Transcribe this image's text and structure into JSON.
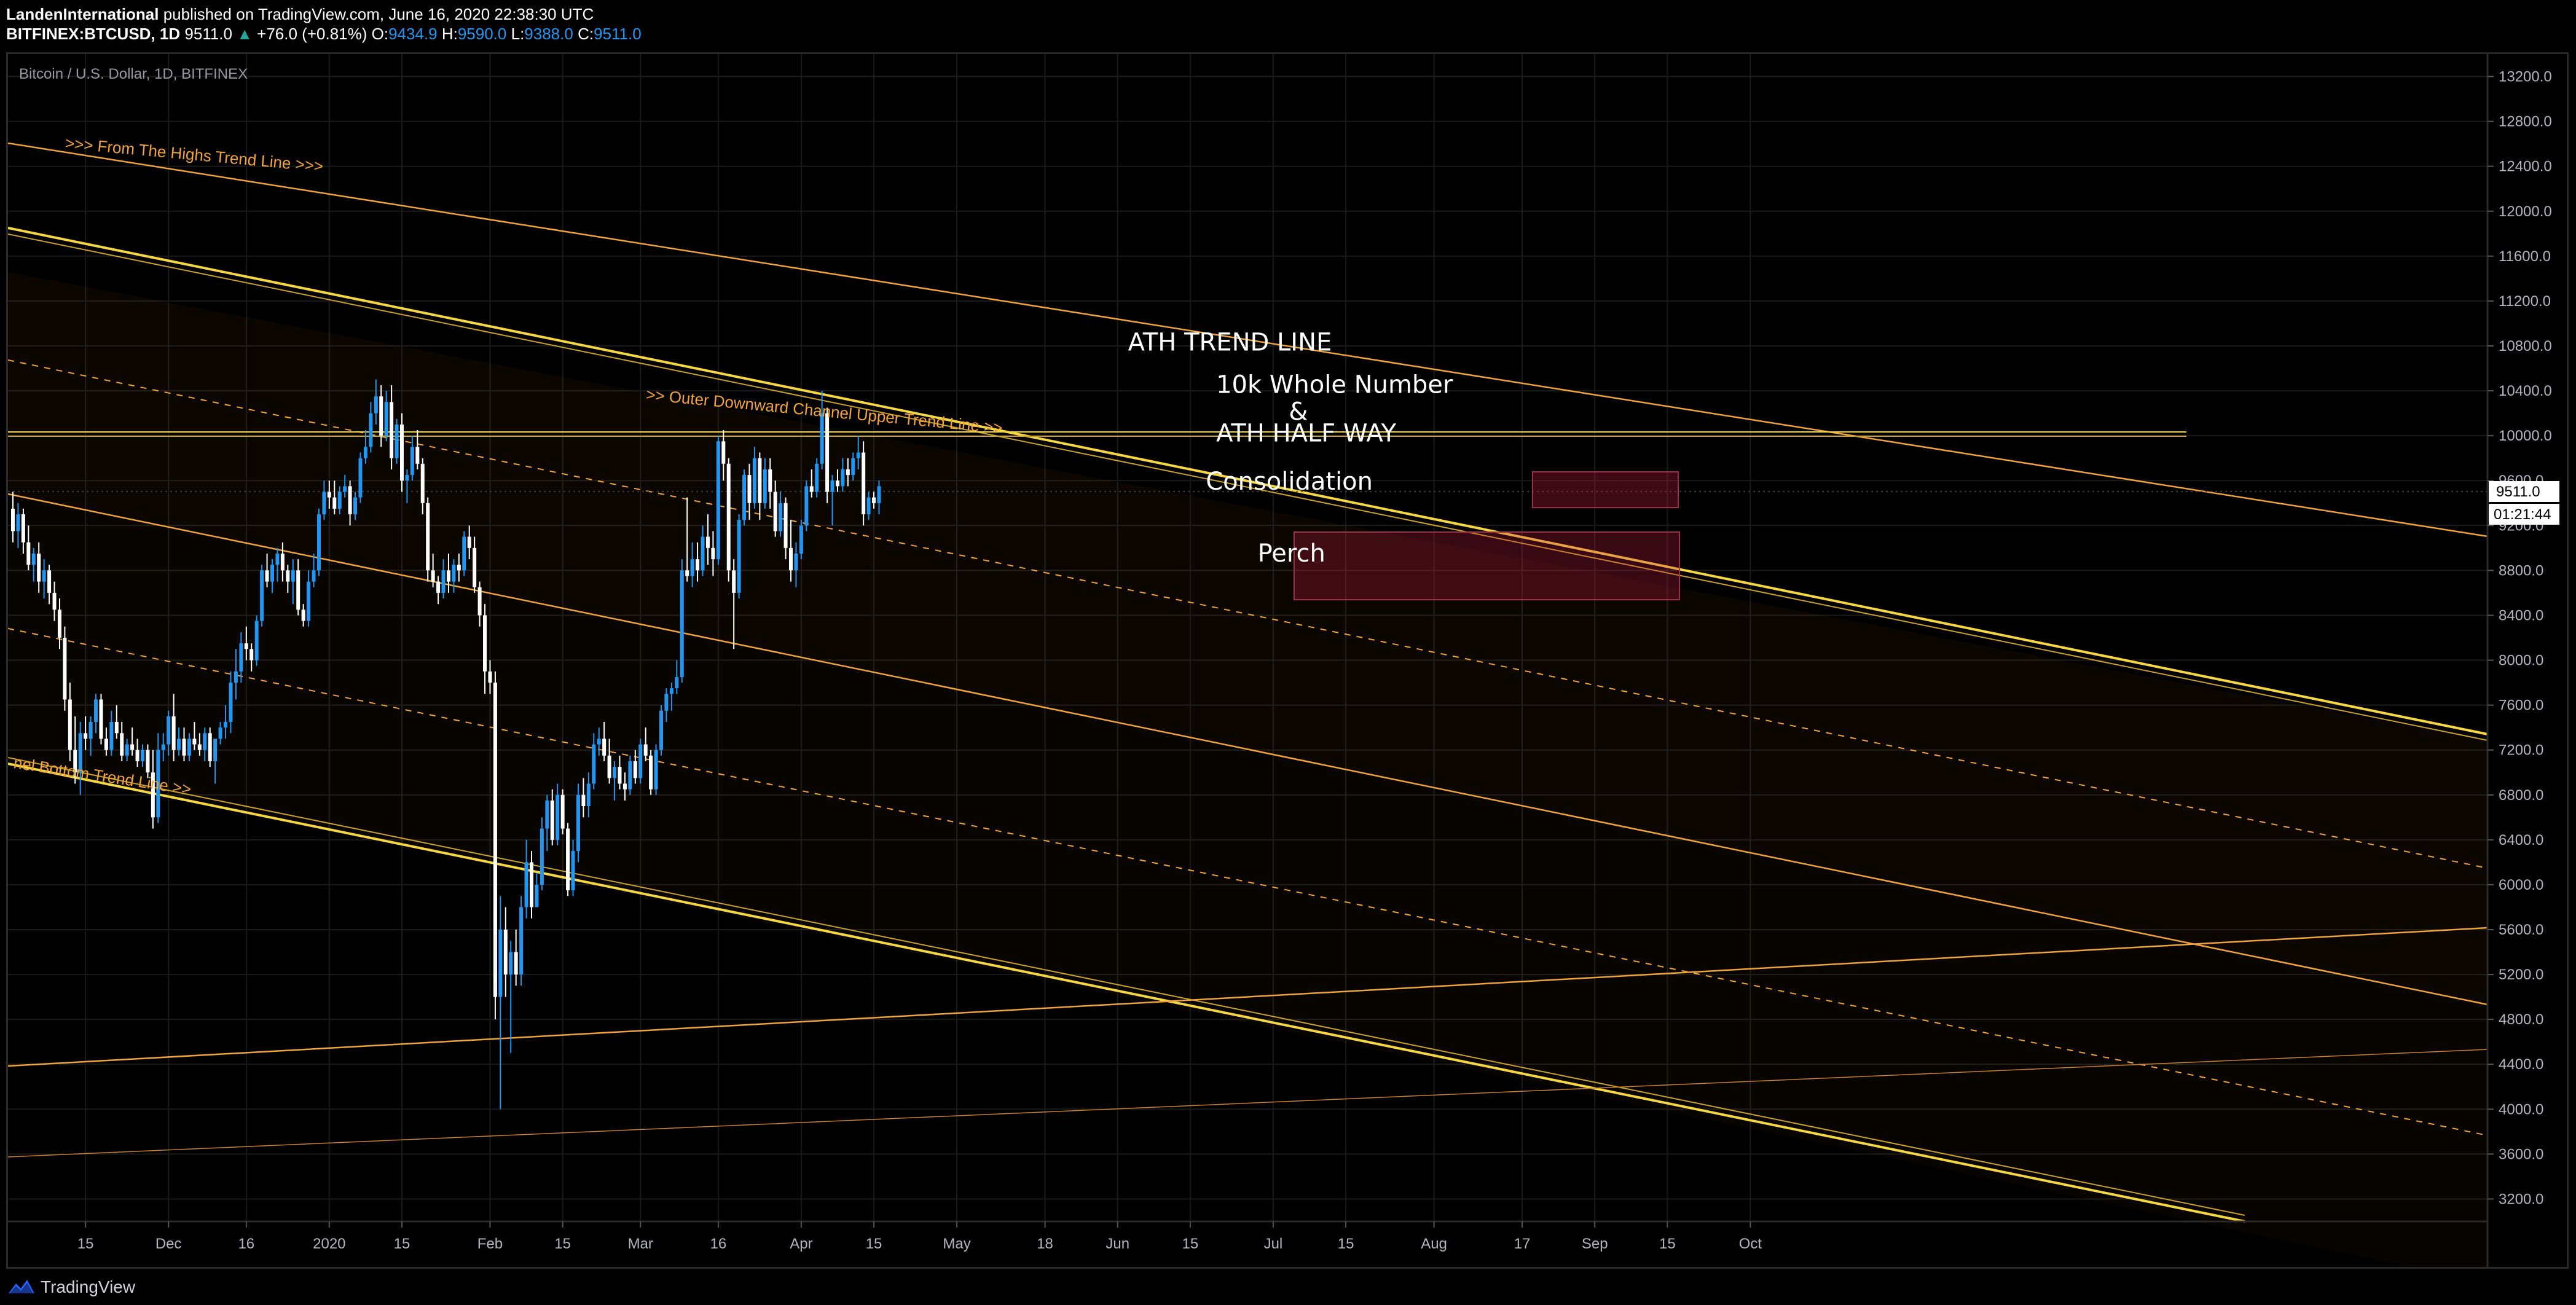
{
  "header": {
    "author": "LandenInternational",
    "published": "published on TradingView.com, June 16, 2020 22:38:30 UTC",
    "symbol": "BITFINEX:BTCUSD, 1D",
    "price": "9511.0",
    "change": "+76.0 (+0.81%)",
    "o_label": "O:",
    "o_value": "9434.9",
    "h_label": "H:",
    "h_value": "9590.0",
    "l_label": "L:",
    "l_value": "9388.0",
    "c_label": "C:",
    "c_value": "9511.0"
  },
  "chart_data": {
    "type": "candlestick",
    "title": "Bitcoin / U.S. Dollar, 1D, BITFINEX",
    "ylim": [
      3000,
      13400
    ],
    "y_ticks": [
      3200,
      3600,
      4000,
      4400,
      4800,
      5200,
      5600,
      6000,
      6400,
      6800,
      7200,
      7600,
      8000,
      8400,
      8800,
      9200,
      9600,
      10000,
      10400,
      10800,
      11200,
      11600,
      12000,
      12400,
      12800,
      13200
    ],
    "y_tick_labels": [
      "3200.0",
      "3600.0",
      "4000.0",
      "4400.0",
      "4800.0",
      "5200.0",
      "5600.0",
      "6000.0",
      "6400.0",
      "6800.0",
      "7200.0",
      "7600.0",
      "8000.0",
      "8400.0",
      "8800.0",
      "9200.0",
      "9600.0",
      "10000.0",
      "10400.0",
      "10800.0",
      "11200.0",
      "11600.0",
      "12000.0",
      "12400.0",
      "12800.0",
      "13200.0"
    ],
    "x_ticks": [
      {
        "label": "15",
        "day": 14
      },
      {
        "label": "Dec",
        "day": 30
      },
      {
        "label": "16",
        "day": 45
      },
      {
        "label": "2020",
        "day": 61
      },
      {
        "label": "15",
        "day": 75
      },
      {
        "label": "Feb",
        "day": 92
      },
      {
        "label": "15",
        "day": 106
      },
      {
        "label": "Mar",
        "day": 121
      },
      {
        "label": "16",
        "day": 136
      },
      {
        "label": "Apr",
        "day": 152
      },
      {
        "label": "15",
        "day": 166
      },
      {
        "label": "May",
        "day": 182
      },
      {
        "label": "18",
        "day": 199
      },
      {
        "label": "Jun",
        "day": 213
      },
      {
        "label": "15",
        "day": 227
      },
      {
        "label": "Jul",
        "day": 243
      },
      {
        "label": "15",
        "day": 257
      },
      {
        "label": "Aug",
        "day": 274
      },
      {
        "label": "17",
        "day": 291
      },
      {
        "label": "Sep",
        "day": 305
      },
      {
        "label": "15",
        "day": 319
      },
      {
        "label": "Oct",
        "day": 335
      }
    ],
    "price_label": "9511.0",
    "countdown_label": "01:21:44",
    "annotations": [
      {
        "text": "ATH TREND LINE",
        "day": 215,
        "price": 10760,
        "size": 40
      },
      {
        "text": "10k Whole Number",
        "day": 232,
        "price": 10380,
        "size": 40
      },
      {
        "text": "&",
        "day": 246,
        "price": 10140,
        "size": 40
      },
      {
        "text": "ATH HALF WAY",
        "day": 232,
        "price": 9950,
        "size": 40
      },
      {
        "text": "Consolidation",
        "day": 230,
        "price": 9520,
        "size": 40
      },
      {
        "text": "Perch",
        "day": 240,
        "price": 8880,
        "size": 40
      }
    ],
    "trendline_labels": [
      {
        "text": ">>> From The Highs Trend Line >>>",
        "day": 10,
        "price": 12560,
        "angle": 5.2
      },
      {
        "text": ">> Outer Downward Channel Upper Trend Line >>",
        "day": 122,
        "price": 10320,
        "angle": 5.4
      },
      {
        "text": "nel Bottom Trend Line >>",
        "day": 0,
        "price": 7040,
        "angle": 8.6
      }
    ],
    "candles": [
      [
        9350,
        9500,
        9050,
        9150
      ],
      [
        9150,
        9400,
        9000,
        9300
      ],
      [
        9300,
        9350,
        8950,
        9050
      ],
      [
        9050,
        9200,
        8800,
        8850
      ],
      [
        8850,
        9000,
        8700,
        8950
      ],
      [
        8950,
        9050,
        8600,
        8700
      ],
      [
        8700,
        8900,
        8550,
        8800
      ],
      [
        8800,
        8850,
        8500,
        8600
      ],
      [
        8600,
        8700,
        8350,
        8450
      ],
      [
        8450,
        8550,
        8100,
        8200
      ],
      [
        8200,
        8300,
        7550,
        7650
      ],
      [
        7650,
        7800,
        7100,
        7200
      ],
      [
        7200,
        7500,
        6900,
        7000
      ],
      [
        7000,
        7450,
        6800,
        7350
      ],
      [
        7350,
        7500,
        7200,
        7300
      ],
      [
        7300,
        7500,
        7150,
        7450
      ],
      [
        7450,
        7700,
        7350,
        7650
      ],
      [
        7650,
        7700,
        7250,
        7300
      ],
      [
        7300,
        7400,
        7150,
        7200
      ],
      [
        7200,
        7550,
        7150,
        7450
      ],
      [
        7450,
        7600,
        7300,
        7350
      ],
      [
        7350,
        7450,
        7100,
        7150
      ],
      [
        7150,
        7300,
        7100,
        7250
      ],
      [
        7250,
        7400,
        7150,
        7200
      ],
      [
        7200,
        7300,
        7050,
        7100
      ],
      [
        7100,
        7250,
        7050,
        7200
      ],
      [
        7200,
        7250,
        6950,
        7000
      ],
      [
        7000,
        7200,
        6500,
        6600
      ],
      [
        6600,
        7350,
        6550,
        7200
      ],
      [
        7200,
        7350,
        7100,
        7250
      ],
      [
        7250,
        7550,
        7150,
        7500
      ],
      [
        7500,
        7700,
        7100,
        7200
      ],
      [
        7200,
        7400,
        7150,
        7300
      ],
      [
        7300,
        7400,
        7100,
        7150
      ],
      [
        7150,
        7350,
        7100,
        7300
      ],
      [
        7300,
        7450,
        7200,
        7250
      ],
      [
        7250,
        7350,
        7150,
        7200
      ],
      [
        7200,
        7400,
        7100,
        7350
      ],
      [
        7350,
        7400,
        7050,
        7100
      ],
      [
        7100,
        7250,
        6900,
        7300
      ],
      [
        7300,
        7450,
        7250,
        7400
      ],
      [
        7400,
        7600,
        7300,
        7450
      ],
      [
        7450,
        7900,
        7350,
        7800
      ],
      [
        7800,
        8100,
        7650,
        7900
      ],
      [
        7900,
        8250,
        7800,
        8150
      ],
      [
        8150,
        8300,
        8000,
        8100
      ],
      [
        8100,
        8150,
        7900,
        8000
      ],
      [
        8000,
        8400,
        7950,
        8350
      ],
      [
        8350,
        8850,
        8300,
        8800
      ],
      [
        8800,
        8950,
        8650,
        8700
      ],
      [
        8700,
        8900,
        8600,
        8850
      ],
      [
        8850,
        9000,
        8700,
        8950
      ],
      [
        8950,
        9050,
        8700,
        8800
      ],
      [
        8800,
        8850,
        8600,
        8700
      ],
      [
        8700,
        8900,
        8500,
        8800
      ],
      [
        8800,
        8900,
        8400,
        8450
      ],
      [
        8450,
        8500,
        8300,
        8350
      ],
      [
        8350,
        8800,
        8300,
        8700
      ],
      [
        8700,
        8950,
        8650,
        8800
      ],
      [
        8800,
        9350,
        8750,
        9300
      ],
      [
        9300,
        9600,
        9250,
        9500
      ],
      [
        9500,
        9600,
        9350,
        9450
      ],
      [
        9450,
        9600,
        9300,
        9350
      ],
      [
        9350,
        9550,
        9300,
        9500
      ],
      [
        9500,
        9650,
        9450,
        9550
      ],
      [
        9550,
        9600,
        9200,
        9300
      ],
      [
        9300,
        9500,
        9250,
        9450
      ],
      [
        9450,
        9850,
        9400,
        9800
      ],
      [
        9800,
        10050,
        9750,
        9900
      ],
      [
        9900,
        10300,
        9850,
        10200
      ],
      [
        10200,
        10500,
        10100,
        10350
      ],
      [
        10350,
        10450,
        9900,
        10000
      ],
      [
        10000,
        10400,
        9950,
        10300
      ],
      [
        10300,
        10450,
        9700,
        9800
      ],
      [
        9800,
        10150,
        9750,
        10100
      ],
      [
        10100,
        10200,
        9500,
        9600
      ],
      [
        9600,
        9700,
        9400,
        9650
      ],
      [
        9650,
        10000,
        9600,
        9900
      ],
      [
        9900,
        10050,
        9700,
        9750
      ],
      [
        9750,
        9800,
        9300,
        9400
      ],
      [
        9400,
        9450,
        8700,
        8800
      ],
      [
        8800,
        8950,
        8650,
        8700
      ],
      [
        8700,
        8750,
        8500,
        8600
      ],
      [
        8600,
        8900,
        8550,
        8800
      ],
      [
        8800,
        8950,
        8600,
        8700
      ],
      [
        8700,
        8900,
        8600,
        8850
      ],
      [
        8850,
        8950,
        8700,
        8800
      ],
      [
        8800,
        9150,
        8750,
        9100
      ],
      [
        9100,
        9200,
        8900,
        9000
      ],
      [
        9000,
        9100,
        8600,
        8650
      ],
      [
        8650,
        8700,
        8300,
        8400
      ],
      [
        8400,
        8500,
        7700,
        7900
      ],
      [
        7900,
        8000,
        7700,
        7800
      ],
      [
        7800,
        7900,
        4800,
        5000
      ],
      [
        5000,
        5900,
        4000,
        5600
      ],
      [
        5600,
        5800,
        5000,
        5200
      ],
      [
        5200,
        5500,
        4500,
        5400
      ],
      [
        5400,
        5600,
        5100,
        5200
      ],
      [
        5200,
        5900,
        5100,
        5800
      ],
      [
        5800,
        6400,
        5700,
        6200
      ],
      [
        6200,
        6300,
        5700,
        5800
      ],
      [
        5800,
        6100,
        5850,
        6000
      ],
      [
        6000,
        6600,
        5950,
        6500
      ],
      [
        6500,
        6800,
        6300,
        6750
      ],
      [
        6750,
        6850,
        6350,
        6400
      ],
      [
        6400,
        6900,
        6350,
        6800
      ],
      [
        6800,
        6850,
        6450,
        6500
      ],
      [
        6500,
        6550,
        5900,
        5950
      ],
      [
        5950,
        6400,
        5900,
        6300
      ],
      [
        6300,
        6900,
        6200,
        6800
      ],
      [
        6800,
        6950,
        6600,
        6700
      ],
      [
        6700,
        7000,
        6600,
        6900
      ],
      [
        6900,
        7350,
        6850,
        7250
      ],
      [
        7250,
        7400,
        7150,
        7300
      ],
      [
        7300,
        7450,
        7100,
        7150
      ],
      [
        7150,
        7300,
        6900,
        6950
      ],
      [
        6950,
        7100,
        6750,
        7050
      ],
      [
        7050,
        7150,
        6850,
        6900
      ],
      [
        6900,
        7000,
        6750,
        6850
      ],
      [
        6850,
        7150,
        6800,
        7100
      ],
      [
        7100,
        7200,
        6900,
        6950
      ],
      [
        6950,
        7300,
        6900,
        7250
      ],
      [
        7250,
        7400,
        7100,
        7150
      ],
      [
        7150,
        7200,
        6800,
        6850
      ],
      [
        6850,
        7250,
        6800,
        7200
      ],
      [
        7200,
        7600,
        7150,
        7550
      ],
      [
        7550,
        7750,
        7450,
        7700
      ],
      [
        7700,
        7800,
        7550,
        7750
      ],
      [
        7750,
        8000,
        7700,
        7850
      ],
      [
        7850,
        8900,
        7800,
        8800
      ],
      [
        8800,
        9450,
        8700,
        8750
      ],
      [
        8750,
        9050,
        8650,
        8900
      ],
      [
        8900,
        9050,
        8700,
        8800
      ],
      [
        8800,
        9200,
        8750,
        9100
      ],
      [
        9100,
        9300,
        8850,
        9000
      ],
      [
        9000,
        9150,
        8750,
        8900
      ],
      [
        8900,
        10000,
        8850,
        9950
      ],
      [
        9950,
        10050,
        9600,
        9750
      ],
      [
        9750,
        9800,
        8700,
        8800
      ],
      [
        8800,
        8900,
        8100,
        8600
      ],
      [
        8600,
        9300,
        8550,
        9250
      ],
      [
        9250,
        9700,
        9200,
        9650
      ],
      [
        9650,
        9750,
        9250,
        9400
      ],
      [
        9400,
        9900,
        9350,
        9800
      ],
      [
        9800,
        9850,
        9250,
        9400
      ],
      [
        9400,
        9800,
        9350,
        9700
      ],
      [
        9700,
        9800,
        9350,
        9500
      ],
      [
        9500,
        9600,
        9100,
        9150
      ],
      [
        9150,
        9500,
        9100,
        9400
      ],
      [
        9400,
        9450,
        8900,
        9000
      ],
      [
        9000,
        9250,
        8700,
        8800
      ],
      [
        8800,
        9050,
        8650,
        8950
      ],
      [
        8950,
        9250,
        8900,
        9200
      ],
      [
        9200,
        9600,
        9150,
        9550
      ],
      [
        9550,
        9700,
        9450,
        9500
      ],
      [
        9500,
        9800,
        9450,
        9750
      ],
      [
        9750,
        10400,
        9700,
        10200
      ],
      [
        10200,
        10250,
        9400,
        9500
      ],
      [
        9500,
        9650,
        9200,
        9600
      ],
      [
        9600,
        9700,
        9500,
        9550
      ],
      [
        9550,
        9800,
        9500,
        9700
      ],
      [
        9700,
        9800,
        9550,
        9650
      ],
      [
        9650,
        9850,
        9600,
        9800
      ],
      [
        9800,
        10000,
        9700,
        9850
      ],
      [
        9850,
        9950,
        9200,
        9300
      ],
      [
        9300,
        9500,
        9250,
        9450
      ],
      [
        9450,
        9500,
        9350,
        9400
      ],
      [
        9400,
        9600,
        9300,
        9550
      ]
    ]
  },
  "footer": {
    "brand": "TradingView"
  }
}
